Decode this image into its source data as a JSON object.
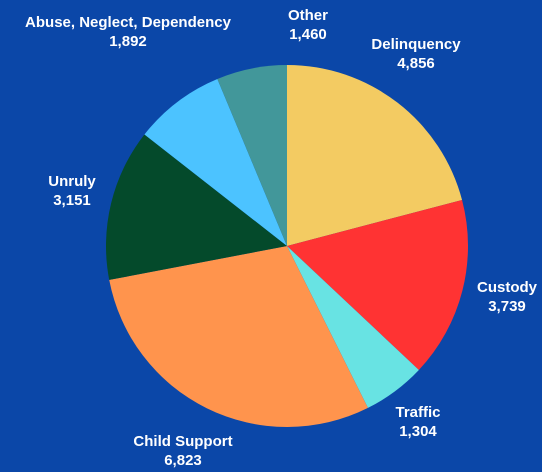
{
  "chart_data": {
    "type": "pie",
    "title": "",
    "slices": [
      {
        "label": "Delinquency",
        "value": 4856,
        "display": "4,856",
        "color": "#F3CB62"
      },
      {
        "label": "Custody",
        "value": 3739,
        "display": "3,739",
        "color": "#FF3333"
      },
      {
        "label": "Traffic",
        "value": 1304,
        "display": "1,304",
        "color": "#68E3E3"
      },
      {
        "label": "Child Support",
        "value": 6823,
        "display": "6,823",
        "color": "#FF944D"
      },
      {
        "label": "Unruly",
        "value": 3151,
        "display": "3,151",
        "color": "#044A2B"
      },
      {
        "label": "Abuse, Neglect, Dependency",
        "value": 1892,
        "display": "1,892",
        "color": "#4CC3FF"
      },
      {
        "label": "Other",
        "value": 1460,
        "display": "1,460",
        "color": "#42979A"
      }
    ]
  }
}
